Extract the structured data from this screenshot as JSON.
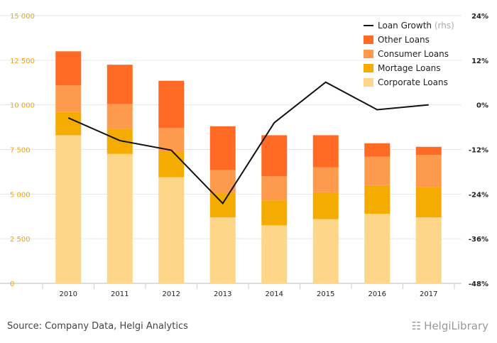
{
  "chart_data": {
    "type": "bar",
    "categories": [
      "2010",
      "2011",
      "2012",
      "2013",
      "2014",
      "2015",
      "2016",
      "2017"
    ],
    "series": [
      {
        "name": "Corporate Loans",
        "type": "stacked-bar",
        "color": "#fdd68a",
        "values": [
          8300,
          7250,
          5950,
          3700,
          3250,
          3600,
          3900,
          3700
        ]
      },
      {
        "name": "Mortage Loans",
        "type": "stacked-bar",
        "color": "#f5ac00",
        "values": [
          1300,
          1400,
          1450,
          1350,
          1400,
          1500,
          1600,
          1700
        ]
      },
      {
        "name": "Consumer Loans",
        "type": "stacked-bar",
        "color": "#fe9a4d",
        "values": [
          1500,
          1400,
          1300,
          1300,
          1350,
          1400,
          1600,
          1800
        ]
      },
      {
        "name": "Other Loans",
        "type": "stacked-bar",
        "color": "#ff6a25",
        "values": [
          1900,
          2200,
          2650,
          2450,
          2300,
          1800,
          750,
          450
        ]
      },
      {
        "name": "Loan Growth",
        "name_note": "(rhs)",
        "type": "line",
        "axis": "right",
        "color": "#111111",
        "values": [
          -3.5,
          -9.6,
          -12.2,
          -26.5,
          -4.8,
          6.1,
          -1.3,
          0.0
        ]
      }
    ],
    "y_left": {
      "ticks": [
        "0",
        "2 500",
        "5 000",
        "7 500",
        "10 000",
        "12 500",
        "15 000"
      ],
      "ylim": [
        0,
        15000
      ]
    },
    "y_right": {
      "ticks": [
        "-48%",
        "-36%",
        "-24%",
        "-12%",
        "0%",
        "12%",
        "24%"
      ],
      "ylim": [
        -48,
        24
      ]
    },
    "legend_placement": "top-right",
    "grid": true
  },
  "footer": {
    "source": "Source: Company Data, Helgi Analytics",
    "logo_text": "HelgiLibrary"
  }
}
